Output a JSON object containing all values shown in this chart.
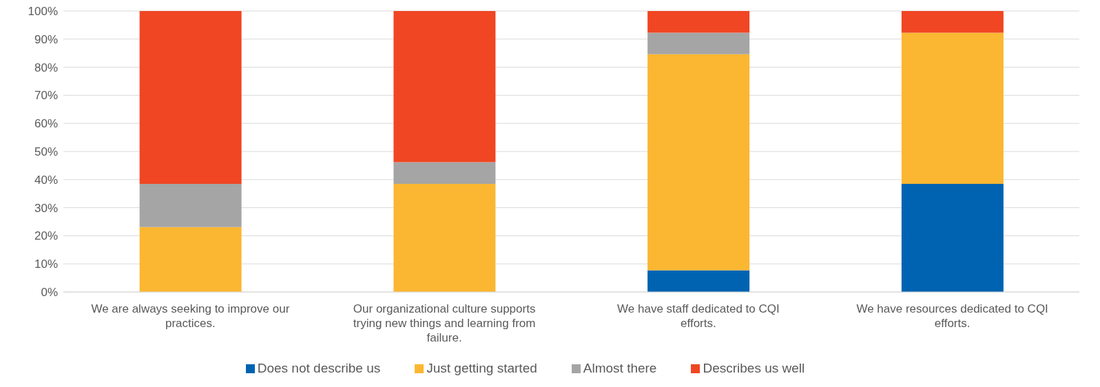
{
  "chart_data": {
    "type": "bar",
    "stacked": true,
    "categories": [
      "We are always seeking to improve our practices.",
      "Our organizational culture supports trying new things and learning from failure.",
      "We have staff dedicated to CQI efforts.",
      "We have resources dedicated to CQI efforts."
    ],
    "series": [
      {
        "name": "Does not describe us",
        "color": "#0063b1",
        "values": [
          0,
          0,
          7.7,
          38.5
        ]
      },
      {
        "name": "Just getting started",
        "color": "#fbb732",
        "values": [
          23.1,
          38.5,
          76.9,
          53.8
        ]
      },
      {
        "name": "Almost there",
        "color": "#a5a5a5",
        "values": [
          15.4,
          7.7,
          7.7,
          0
        ]
      },
      {
        "name": "Describes us well",
        "color": "#f04623",
        "values": [
          61.5,
          53.8,
          7.7,
          7.7
        ]
      }
    ],
    "ylim": [
      0,
      100
    ],
    "yticks": [
      {
        "value": 0,
        "label": "0%"
      },
      {
        "value": 10,
        "label": "10%"
      },
      {
        "value": 20,
        "label": "20%"
      },
      {
        "value": 30,
        "label": "30%"
      },
      {
        "value": 40,
        "label": "40%"
      },
      {
        "value": 50,
        "label": "50%"
      },
      {
        "value": 60,
        "label": "60%"
      },
      {
        "value": 70,
        "label": "70%"
      },
      {
        "value": 80,
        "label": "80%"
      },
      {
        "value": 90,
        "label": "90%"
      },
      {
        "value": 100,
        "label": "100%"
      }
    ],
    "grid": "y",
    "legend": "bottom"
  }
}
